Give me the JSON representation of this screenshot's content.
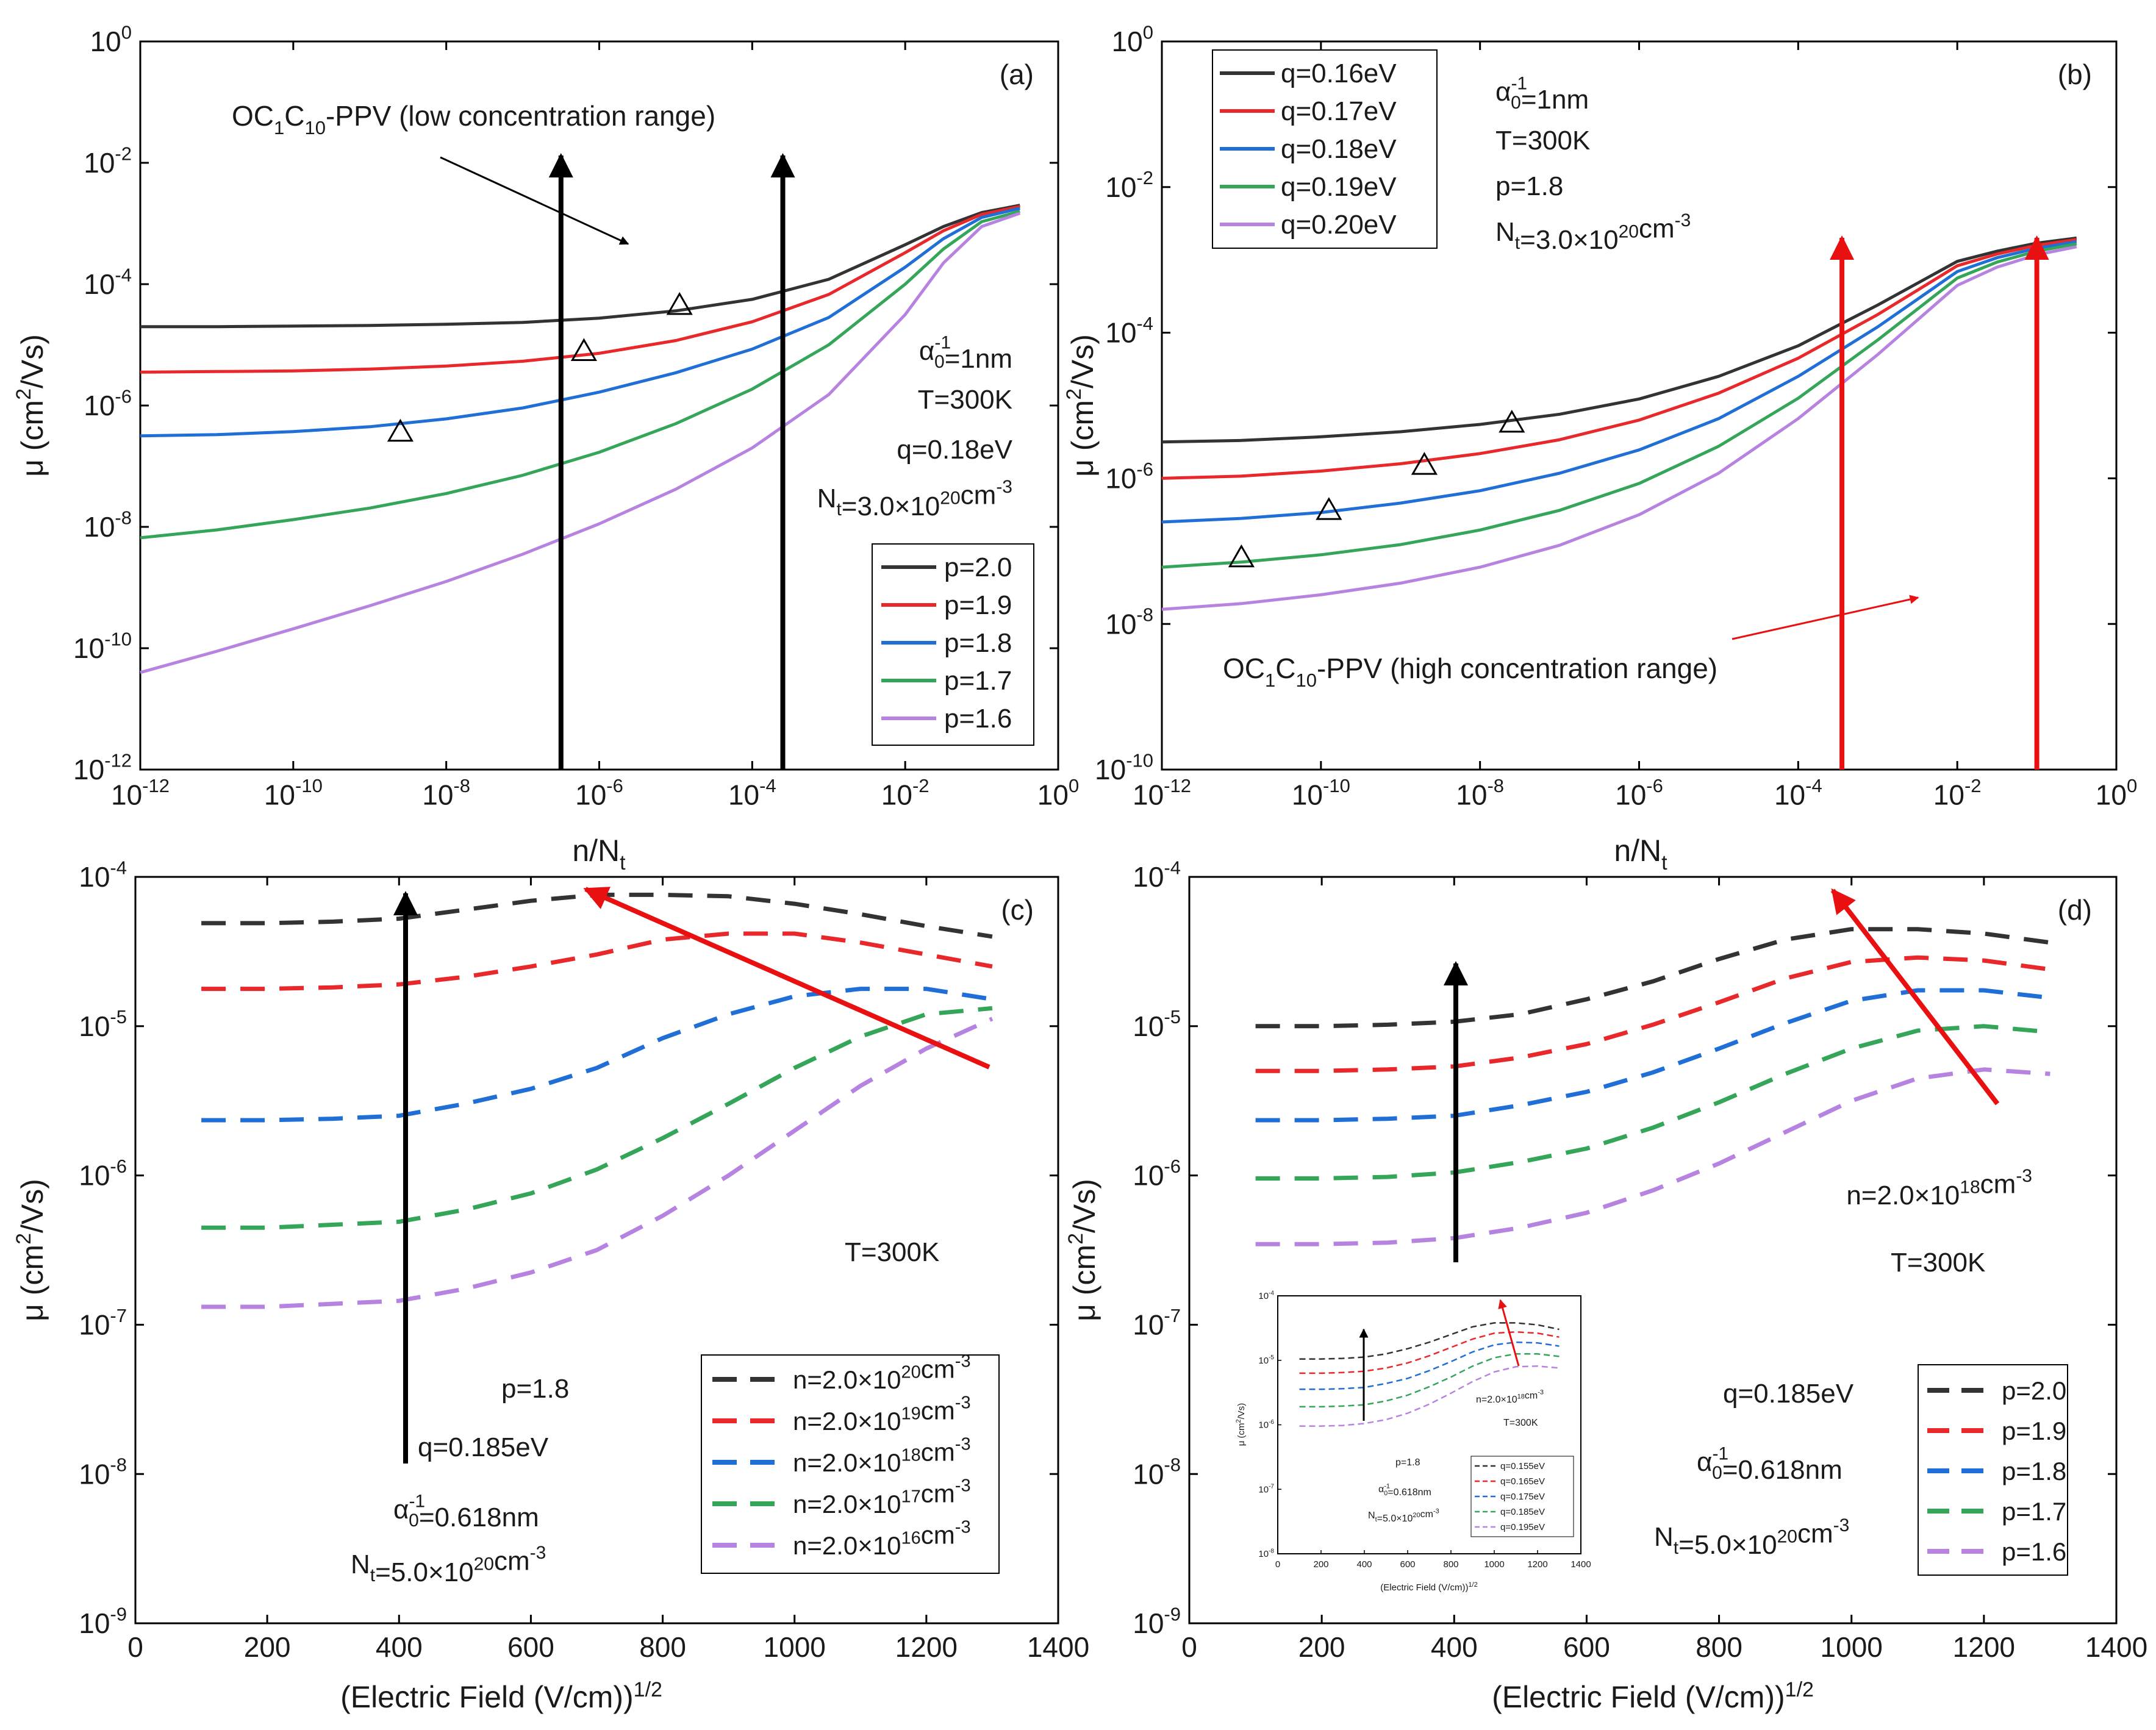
{
  "colors": {
    "black": "#333333",
    "red": "#e8282a",
    "blue": "#1f6fd6",
    "green": "#35a55a",
    "purple": "#b783e0",
    "arrow_black": "#000000",
    "arrow_red": "#e81010"
  },
  "chart_data": [
    {
      "panel_label": "(a)",
      "type": "line",
      "xscale": "log",
      "yscale": "log",
      "xlim": [
        1e-12,
        1
      ],
      "ylim": [
        1e-12,
        1
      ],
      "xlabel": "n/N",
      "xlabel_sub": "t",
      "ylabel": "μ (cm²/Vs)",
      "x_ticks": [
        -12,
        -10,
        -8,
        -6,
        -4,
        -2,
        0
      ],
      "y_ticks": [
        -12,
        -10,
        -8,
        -6,
        -4,
        -2,
        0
      ],
      "x": [
        -12,
        -11,
        -10,
        -9,
        -8,
        -7,
        -6,
        -5,
        -4,
        -3,
        -2,
        -1.5,
        -1,
        -0.5
      ],
      "series": [
        {
          "name": "p=2.0",
          "color": "black",
          "values": [
            -4.7,
            -4.7,
            -4.69,
            -4.68,
            -4.66,
            -4.63,
            -4.56,
            -4.44,
            -4.25,
            -3.92,
            -3.35,
            -3.05,
            -2.82,
            -2.7
          ]
        },
        {
          "name": "p=1.9",
          "color": "red",
          "values": [
            -5.45,
            -5.44,
            -5.43,
            -5.4,
            -5.35,
            -5.27,
            -5.14,
            -4.93,
            -4.62,
            -4.17,
            -3.48,
            -3.12,
            -2.85,
            -2.72
          ]
        },
        {
          "name": "p=1.8",
          "color": "blue",
          "values": [
            -6.5,
            -6.48,
            -6.43,
            -6.35,
            -6.22,
            -6.04,
            -5.78,
            -5.46,
            -5.07,
            -4.55,
            -3.72,
            -3.25,
            -2.9,
            -2.75
          ]
        },
        {
          "name": "p=1.7",
          "color": "green",
          "values": [
            -8.18,
            -8.05,
            -7.88,
            -7.69,
            -7.45,
            -7.15,
            -6.77,
            -6.3,
            -5.73,
            -5.0,
            -4.0,
            -3.42,
            -2.97,
            -2.8
          ]
        },
        {
          "name": "p=1.6",
          "color": "purple",
          "values": [
            -10.4,
            -10.05,
            -9.68,
            -9.3,
            -8.9,
            -8.45,
            -7.95,
            -7.38,
            -6.7,
            -5.82,
            -4.5,
            -3.65,
            -3.05,
            -2.83
          ]
        }
      ],
      "markers": [
        {
          "x": -8.6,
          "y": -6.45
        },
        {
          "x": -6.2,
          "y": -5.12
        },
        {
          "x": -4.95,
          "y": -4.36
        }
      ],
      "legend": [
        "p=2.0",
        "p=1.9",
        "p=1.8",
        "p=1.7",
        "p=1.6"
      ],
      "annotation_lines": [
        {
          "text": "α",
          "sup": "-1",
          "sub": "0",
          "tail": "=1nm"
        },
        {
          "text": "T=300K"
        },
        {
          "text": "q=0.18eV"
        },
        {
          "text": "N",
          "sub": "t",
          "tail": "=3.0×10",
          "sup2": "20",
          "tail2": "cm",
          "sup3": "-3"
        }
      ],
      "material_label": {
        "pre": "OC",
        "s1": "1",
        "mid": "C",
        "s2": "10",
        "post": "-PPV (low concentration range)"
      },
      "vertical_arrows_x": [
        -6.5,
        -3.6
      ]
    },
    {
      "panel_label": "(b)",
      "type": "line",
      "xscale": "log",
      "yscale": "log",
      "xlim": [
        1e-12,
        1
      ],
      "ylim": [
        1e-10,
        1
      ],
      "xlabel": "n/N",
      "xlabel_sub": "t",
      "ylabel": "μ (cm²/Vs)",
      "x_ticks": [
        -12,
        -10,
        -8,
        -6,
        -4,
        -2,
        0
      ],
      "y_ticks": [
        -10,
        -8,
        -6,
        -4,
        -2,
        0
      ],
      "x": [
        -12,
        -11,
        -10,
        -9,
        -8,
        -7,
        -6,
        -5,
        -4,
        -3,
        -2,
        -1.5,
        -1,
        -0.5
      ],
      "series": [
        {
          "name": "q=0.16eV",
          "color": "black",
          "values": [
            -5.5,
            -5.48,
            -5.43,
            -5.36,
            -5.26,
            -5.12,
            -4.91,
            -4.6,
            -4.18,
            -3.62,
            -3.02,
            -2.88,
            -2.77,
            -2.7
          ]
        },
        {
          "name": "q=0.17eV",
          "color": "red",
          "values": [
            -6.0,
            -5.97,
            -5.9,
            -5.8,
            -5.66,
            -5.47,
            -5.2,
            -4.83,
            -4.35,
            -3.75,
            -3.08,
            -2.92,
            -2.8,
            -2.72
          ]
        },
        {
          "name": "q=0.18eV",
          "color": "blue",
          "values": [
            -6.6,
            -6.55,
            -6.47,
            -6.34,
            -6.17,
            -5.93,
            -5.61,
            -5.18,
            -4.6,
            -3.92,
            -3.16,
            -2.97,
            -2.84,
            -2.75
          ]
        },
        {
          "name": "q=0.19eV",
          "color": "green",
          "values": [
            -7.22,
            -7.15,
            -7.05,
            -6.91,
            -6.71,
            -6.44,
            -6.07,
            -5.56,
            -4.9,
            -4.1,
            -3.25,
            -3.03,
            -2.88,
            -2.78
          ]
        },
        {
          "name": "q=0.20eV",
          "color": "purple",
          "values": [
            -7.8,
            -7.72,
            -7.6,
            -7.44,
            -7.22,
            -6.92,
            -6.5,
            -5.93,
            -5.18,
            -4.3,
            -3.35,
            -3.1,
            -2.93,
            -2.82
          ]
        }
      ],
      "markers": [
        {
          "x": -7.6,
          "y": -5.25
        },
        {
          "x": -8.7,
          "y": -5.83
        },
        {
          "x": -9.9,
          "y": -6.45
        },
        {
          "x": -11.0,
          "y": -7.1
        }
      ],
      "legend": [
        "q=0.16eV",
        "q=0.17eV",
        "q=0.18eV",
        "q=0.19eV",
        "q=0.20eV"
      ],
      "annotation_lines": [
        {
          "text": "α",
          "sup": "-1",
          "sub": "0",
          "tail": "=1nm"
        },
        {
          "text": "T=300K"
        },
        {
          "text": "p=1.8"
        },
        {
          "text": "N",
          "sub": "t",
          "tail": "=3.0×10",
          "sup2": "20",
          "tail2": "cm",
          "sup3": "-3"
        }
      ],
      "material_label": {
        "pre": "OC",
        "s1": "1",
        "mid": "C",
        "s2": "10",
        "post": "-PPV (high concentration range)"
      },
      "vertical_arrows_x": [
        -3.45,
        -1.0
      ]
    },
    {
      "panel_label": "(c)",
      "type": "line",
      "style": "dashed",
      "xscale": "linear",
      "yscale": "log",
      "xlim": [
        0,
        1400
      ],
      "ylim": [
        1e-09,
        0.0001
      ],
      "xlabel": "(Electric Field (V/cm))",
      "xlabel_sup": "1/2",
      "ylabel": "μ (cm²/Vs)",
      "x_ticks": [
        0,
        200,
        400,
        600,
        800,
        1000,
        1200,
        1400
      ],
      "y_ticks": [
        -9,
        -8,
        -7,
        -6,
        -5,
        -4
      ],
      "x": [
        100,
        200,
        300,
        400,
        500,
        600,
        700,
        800,
        900,
        1000,
        1100,
        1200,
        1300
      ],
      "series": [
        {
          "name": "n=2.0×10^20cm^-3",
          "label": {
            "pre": "n=2.0×10",
            "sup": "20",
            "post": "cm",
            "sup2": "-3"
          },
          "color": "black",
          "values": [
            -4.31,
            -4.31,
            -4.3,
            -4.28,
            -4.22,
            -4.16,
            -4.12,
            -4.12,
            -4.13,
            -4.18,
            -4.25,
            -4.33,
            -4.4
          ]
        },
        {
          "name": "n=2.0×10^19cm^-3",
          "label": {
            "pre": "n=2.0×10",
            "sup": "19",
            "post": "cm",
            "sup2": "-3"
          },
          "color": "red",
          "values": [
            -4.75,
            -4.75,
            -4.74,
            -4.72,
            -4.67,
            -4.6,
            -4.52,
            -4.42,
            -4.38,
            -4.38,
            -4.44,
            -4.52,
            -4.6
          ]
        },
        {
          "name": "n=2.0×10^18cm^-3",
          "label": {
            "pre": "n=2.0×10",
            "sup": "18",
            "post": "cm",
            "sup2": "-3"
          },
          "color": "blue",
          "values": [
            -5.63,
            -5.63,
            -5.62,
            -5.6,
            -5.52,
            -5.42,
            -5.28,
            -5.08,
            -4.92,
            -4.8,
            -4.75,
            -4.75,
            -4.82
          ]
        },
        {
          "name": "n=2.0×10^17cm^-3",
          "label": {
            "pre": "n=2.0×10",
            "sup": "17",
            "post": "cm",
            "sup2": "-3"
          },
          "color": "green",
          "values": [
            -6.35,
            -6.35,
            -6.33,
            -6.31,
            -6.23,
            -6.12,
            -5.96,
            -5.75,
            -5.52,
            -5.28,
            -5.07,
            -4.92,
            -4.88
          ]
        },
        {
          "name": "n=2.0×10^16cm^-3",
          "label": {
            "pre": "n=2.0×10",
            "sup": "16",
            "post": "cm",
            "sup2": "-3"
          },
          "color": "purple",
          "values": [
            -6.88,
            -6.88,
            -6.86,
            -6.84,
            -6.76,
            -6.65,
            -6.5,
            -6.27,
            -6.0,
            -5.7,
            -5.4,
            -5.15,
            -4.95
          ]
        }
      ],
      "annotation_lines": [
        {
          "text": "T=300K"
        },
        {
          "text": "p=1.8"
        },
        {
          "text": "q=0.185eV"
        },
        {
          "text": "α",
          "sup": "-1",
          "sub": "0",
          "tail": "=0.618nm"
        },
        {
          "text": "N",
          "sub": "t",
          "tail": "=5.0×10",
          "sup2": "20",
          "tail2": "cm",
          "sup3": "-3"
        }
      ]
    },
    {
      "panel_label": "(d)",
      "type": "line",
      "style": "dashed",
      "xscale": "linear",
      "yscale": "log",
      "xlim": [
        0,
        1400
      ],
      "ylim": [
        1e-09,
        0.0001
      ],
      "xlabel": "(Electric Field (V/cm))",
      "xlabel_sup": "1/2",
      "ylabel": "μ (cm²/Vs)",
      "x_ticks": [
        0,
        200,
        400,
        600,
        800,
        1000,
        1200,
        1400
      ],
      "y_ticks": [
        -9,
        -8,
        -7,
        -6,
        -5,
        -4
      ],
      "x": [
        100,
        200,
        300,
        400,
        500,
        600,
        700,
        800,
        900,
        1000,
        1100,
        1200,
        1300
      ],
      "series": [
        {
          "name": "p=2.0",
          "color": "black",
          "values": [
            -5.0,
            -5.0,
            -4.99,
            -4.97,
            -4.92,
            -4.82,
            -4.7,
            -4.55,
            -4.42,
            -4.35,
            -4.35,
            -4.38,
            -4.44
          ]
        },
        {
          "name": "p=1.9",
          "color": "red",
          "values": [
            -5.3,
            -5.3,
            -5.29,
            -5.27,
            -5.21,
            -5.12,
            -4.99,
            -4.84,
            -4.68,
            -4.57,
            -4.54,
            -4.56,
            -4.62
          ]
        },
        {
          "name": "p=1.8",
          "color": "blue",
          "values": [
            -5.63,
            -5.63,
            -5.62,
            -5.6,
            -5.53,
            -5.44,
            -5.31,
            -5.15,
            -4.98,
            -4.83,
            -4.76,
            -4.76,
            -4.81
          ]
        },
        {
          "name": "p=1.7",
          "color": "green",
          "values": [
            -6.02,
            -6.02,
            -6.01,
            -5.98,
            -5.91,
            -5.82,
            -5.68,
            -5.51,
            -5.32,
            -5.15,
            -5.03,
            -5.0,
            -5.04
          ]
        },
        {
          "name": "p=1.6",
          "color": "purple",
          "values": [
            -6.46,
            -6.46,
            -6.45,
            -6.42,
            -6.35,
            -6.25,
            -6.1,
            -5.92,
            -5.71,
            -5.5,
            -5.35,
            -5.29,
            -5.32
          ]
        }
      ],
      "legend": [
        "p=2.0",
        "p=1.9",
        "p=1.8",
        "p=1.7",
        "p=1.6"
      ],
      "annotation_lines": [
        {
          "text": "n=2.0×10",
          "sup2": "18",
          "tail2": "cm",
          "sup3": "-3"
        },
        {
          "text": "T=300K"
        },
        {
          "text": "q=0.185eV"
        },
        {
          "text": "α",
          "sup": "-1",
          "sub": "0",
          "tail": "=0.618nm"
        },
        {
          "text": "N",
          "sub": "t",
          "tail": "=5.0×10",
          "sup2": "20",
          "tail2": "cm",
          "sup3": "-3"
        }
      ],
      "inset": {
        "xlim": [
          0,
          1400
        ],
        "ylim": [
          1e-08,
          0.0001
        ],
        "x_ticks": [
          0,
          200,
          400,
          600,
          800,
          1000,
          1200,
          1400
        ],
        "y_ticks": [
          -8,
          -7,
          -6,
          -5,
          -4
        ],
        "xlabel": "(Electric Field (V/cm))",
        "xlabel_sup": "1/2",
        "ylabel": "μ (cm²/Vs)",
        "series": [
          {
            "name": "q=0.155eV",
            "color": "black",
            "values": [
              -4.98,
              -4.98,
              -4.97,
              -4.95,
              -4.9,
              -4.82,
              -4.72,
              -4.6,
              -4.48,
              -4.42,
              -4.42,
              -4.45,
              -4.52
            ]
          },
          {
            "name": "q=0.165eV",
            "color": "red",
            "values": [
              -5.2,
              -5.2,
              -5.19,
              -5.17,
              -5.12,
              -5.04,
              -4.93,
              -4.8,
              -4.67,
              -4.58,
              -4.56,
              -4.58,
              -4.64
            ]
          },
          {
            "name": "q=0.175eV",
            "color": "blue",
            "values": [
              -5.45,
              -5.45,
              -5.44,
              -5.42,
              -5.36,
              -5.28,
              -5.16,
              -5.02,
              -4.87,
              -4.76,
              -4.72,
              -4.73,
              -4.78
            ]
          },
          {
            "name": "q=0.185eV",
            "color": "green",
            "values": [
              -5.72,
              -5.72,
              -5.71,
              -5.69,
              -5.63,
              -5.54,
              -5.41,
              -5.26,
              -5.09,
              -4.96,
              -4.9,
              -4.9,
              -4.94
            ]
          },
          {
            "name": "q=0.195eV",
            "color": "purple",
            "values": [
              -6.02,
              -6.02,
              -6.01,
              -5.98,
              -5.92,
              -5.82,
              -5.68,
              -5.51,
              -5.33,
              -5.18,
              -5.1,
              -5.09,
              -5.12
            ]
          }
        ],
        "legend": [
          "q=0.155eV",
          "q=0.165eV",
          "q=0.175eV",
          "q=0.185eV",
          "q=0.195eV"
        ],
        "annotation_lines": [
          {
            "text": "n=2.0×10",
            "sup2": "18",
            "tail2": "cm",
            "sup3": "-3"
          },
          {
            "text": "T=300K"
          },
          {
            "text": "p=1.8"
          },
          {
            "text": "α",
            "sup": "-1",
            "sub": "0",
            "tail": "=0.618nm"
          },
          {
            "text": "N",
            "sub": "t",
            "tail": "=5.0×10",
            "sup2": "20",
            "tail2": "cm",
            "sup3": "-3"
          }
        ]
      }
    }
  ]
}
